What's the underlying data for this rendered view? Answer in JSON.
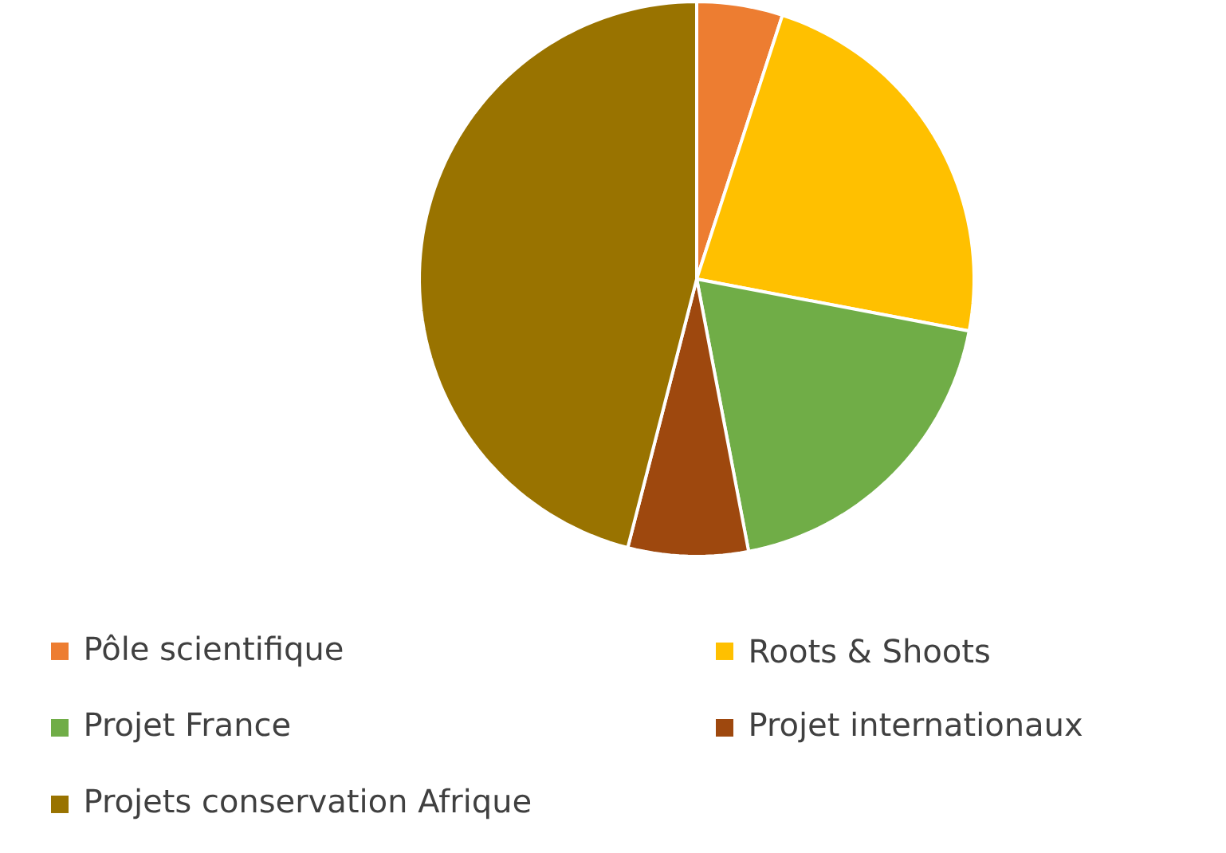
{
  "chart_data": {
    "type": "pie",
    "categories": [
      "Pôle scientifique",
      "Roots & Shoots",
      "Projet France",
      "Projet internationaux",
      "Projets conservation Afrique"
    ],
    "values": [
      5,
      23,
      19,
      7,
      46
    ],
    "colors": [
      "#ed7d31",
      "#ffc000",
      "#70ad47",
      "#9e480e",
      "#997300"
    ],
    "legend": "bottom"
  }
}
